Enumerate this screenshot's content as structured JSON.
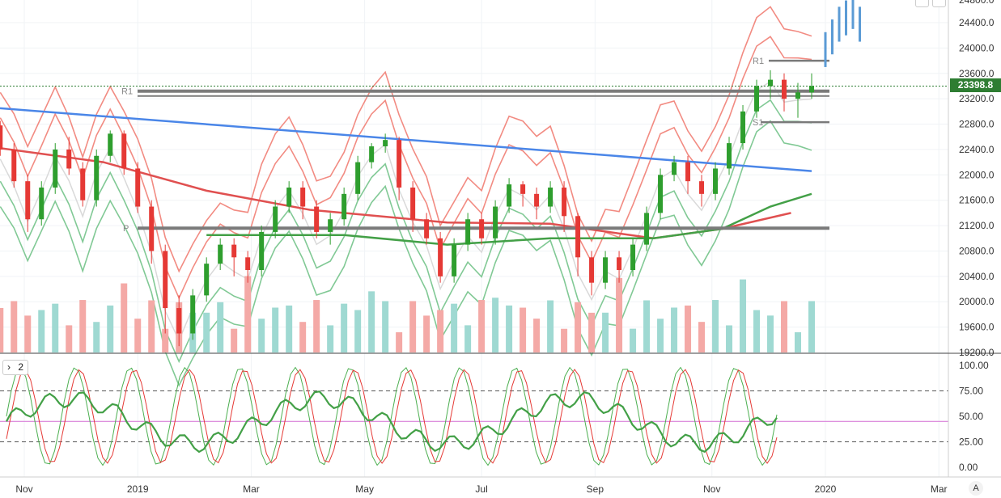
{
  "chart_data": {
    "type": "candlestick",
    "price_axis": {
      "ticks": [
        "24400.0",
        "24000.0",
        "23600.0",
        "23200.0",
        "22800.0",
        "22400.0",
        "22000.0",
        "21600.0",
        "21200.0",
        "20800.0",
        "20400.0",
        "20000.0",
        "19600.0",
        "19200.0"
      ],
      "partial_top_tick": "24800.0",
      "current_price": "23398.8"
    },
    "time_axis": {
      "labels": [
        "Nov",
        "2019",
        "Mar",
        "May",
        "Jul",
        "Sep",
        "Nov",
        "2020",
        "Mar"
      ]
    },
    "levels": [
      {
        "label": "R1",
        "value": 23320
      },
      {
        "label": "P",
        "value": 21160
      },
      {
        "label": "R1",
        "value": 23800
      },
      {
        "label": "S1",
        "value": 22830
      }
    ],
    "trendline": {
      "from": [
        2018.78,
        23050
      ],
      "to": [
        2019.98,
        22060
      ],
      "color": "#4a86e8"
    },
    "moving_average_red": [
      [
        2018.78,
        22450
      ],
      [
        2018.95,
        22200
      ],
      [
        2019.1,
        21750
      ],
      [
        2019.25,
        21450
      ],
      [
        2019.45,
        21250
      ],
      [
        2019.6,
        21230
      ],
      [
        2019.75,
        21000
      ],
      [
        2019.85,
        21150
      ],
      [
        2019.95,
        21400
      ]
    ],
    "moving_average_green": [
      [
        2019.1,
        21050
      ],
      [
        2019.3,
        21050
      ],
      [
        2019.45,
        20900
      ],
      [
        2019.6,
        21000
      ],
      [
        2019.75,
        21000
      ],
      [
        2019.85,
        21150
      ],
      [
        2019.92,
        21500
      ],
      [
        2019.98,
        21700
      ]
    ],
    "candles": [
      [
        2018.8,
        22780,
        22400,
        22850,
        22300
      ],
      [
        2018.82,
        22400,
        21900,
        22500,
        21800
      ],
      [
        2018.84,
        21900,
        21300,
        22000,
        21100
      ],
      [
        2018.86,
        21300,
        21800,
        21900,
        21200
      ],
      [
        2018.88,
        21800,
        22400,
        22500,
        21700
      ],
      [
        2018.9,
        22400,
        22100,
        22600,
        22000
      ],
      [
        2018.92,
        22100,
        21600,
        22200,
        21500
      ],
      [
        2018.94,
        21600,
        22300,
        22400,
        21500
      ],
      [
        2018.96,
        22300,
        22650,
        22700,
        22200
      ],
      [
        2018.98,
        22650,
        22100,
        22700,
        22000
      ],
      [
        2019.0,
        22100,
        21500,
        22200,
        21400
      ],
      [
        2019.02,
        21500,
        20800,
        21600,
        20600
      ],
      [
        2019.04,
        20800,
        19900,
        20900,
        19500
      ],
      [
        2019.06,
        19900,
        19500,
        20100,
        19300
      ],
      [
        2019.08,
        19500,
        20100,
        20200,
        19400
      ],
      [
        2019.1,
        20100,
        20600,
        20700,
        20000
      ],
      [
        2019.12,
        20600,
        20900,
        21000,
        20500
      ],
      [
        2019.14,
        20900,
        20700,
        21000,
        20400
      ],
      [
        2019.16,
        20700,
        20500,
        20800,
        20300
      ],
      [
        2019.18,
        20500,
        21100,
        21200,
        20400
      ],
      [
        2019.2,
        21100,
        21500,
        21600,
        21000
      ],
      [
        2019.22,
        21500,
        21800,
        21900,
        21400
      ],
      [
        2019.24,
        21800,
        21500,
        21900,
        21300
      ],
      [
        2019.26,
        21500,
        21100,
        21600,
        21000
      ],
      [
        2019.28,
        21100,
        21300,
        21400,
        20900
      ],
      [
        2019.3,
        21300,
        21700,
        21800,
        21200
      ],
      [
        2019.32,
        21700,
        22200,
        22300,
        21600
      ],
      [
        2019.34,
        22200,
        22450,
        22500,
        22100
      ],
      [
        2019.36,
        22450,
        22550,
        22650,
        22350
      ],
      [
        2019.38,
        22550,
        21800,
        22600,
        21600
      ],
      [
        2019.4,
        21800,
        21300,
        21900,
        21100
      ],
      [
        2019.42,
        21300,
        21000,
        21400,
        20900
      ],
      [
        2019.44,
        21000,
        20400,
        21100,
        20300
      ],
      [
        2019.46,
        20400,
        20900,
        21000,
        20300
      ],
      [
        2019.48,
        20900,
        21300,
        21400,
        20800
      ],
      [
        2019.5,
        21300,
        21000,
        21400,
        20900
      ],
      [
        2019.52,
        21000,
        21500,
        21600,
        20900
      ],
      [
        2019.54,
        21500,
        21850,
        21950,
        21400
      ],
      [
        2019.56,
        21850,
        21700,
        21900,
        21500
      ],
      [
        2019.58,
        21700,
        21500,
        21800,
        21300
      ],
      [
        2019.6,
        21500,
        21800,
        21900,
        21400
      ],
      [
        2019.62,
        21800,
        21350,
        21900,
        21100
      ],
      [
        2019.64,
        21350,
        20700,
        21400,
        20400
      ],
      [
        2019.66,
        20700,
        20300,
        20800,
        20100
      ],
      [
        2019.68,
        20300,
        20700,
        20800,
        20200
      ],
      [
        2019.7,
        20700,
        20500,
        20800,
        20300
      ],
      [
        2019.72,
        20500,
        20900,
        21000,
        20400
      ],
      [
        2019.74,
        20900,
        21400,
        21500,
        20800
      ],
      [
        2019.76,
        21400,
        22000,
        22100,
        21300
      ],
      [
        2019.78,
        22000,
        22200,
        22300,
        21900
      ],
      [
        2019.8,
        22200,
        21900,
        22300,
        21700
      ],
      [
        2019.82,
        21900,
        21700,
        22000,
        21500
      ],
      [
        2019.84,
        21700,
        22100,
        22200,
        21600
      ],
      [
        2019.86,
        22100,
        22500,
        22600,
        22000
      ],
      [
        2019.88,
        22500,
        23000,
        23100,
        22400
      ],
      [
        2019.9,
        23000,
        23400,
        23500,
        22900
      ],
      [
        2019.92,
        23400,
        23500,
        23650,
        23200
      ],
      [
        2019.94,
        23500,
        23200,
        23600,
        23000
      ],
      [
        2019.96,
        23200,
        23300,
        23450,
        22900
      ],
      [
        2019.98,
        23300,
        23399,
        23600,
        23200
      ]
    ],
    "projection_bars": [
      [
        2020.0,
        24000
      ],
      [
        2020.01,
        24200
      ],
      [
        2020.02,
        24400
      ],
      [
        2020.03,
        24500
      ],
      [
        2020.04,
        24600
      ],
      [
        2020.05,
        24400
      ]
    ],
    "volume_bars": "shown at bottom of price pane, red/teal by candle direction",
    "oscillator": {
      "ticks": [
        "100.00",
        "75.00",
        "50.00",
        "25.00",
        "0.00"
      ],
      "levels": [
        75,
        25
      ],
      "midline": 45,
      "badge_label": "2"
    },
    "grid": true,
    "legend": "none"
  },
  "ui": {
    "pane_toggle_glyph": "›",
    "pane_toggle_label": "2",
    "auto_scale_label": "A"
  },
  "colors": {
    "up": "#2e9e2e",
    "down": "#e53935",
    "bollinger_upper": "#f28b82",
    "bollinger_lower": "#81c995",
    "level_line": "#7a7a7a",
    "price_tag_bg": "#2e7d32",
    "projection": "#5b9bd5"
  }
}
